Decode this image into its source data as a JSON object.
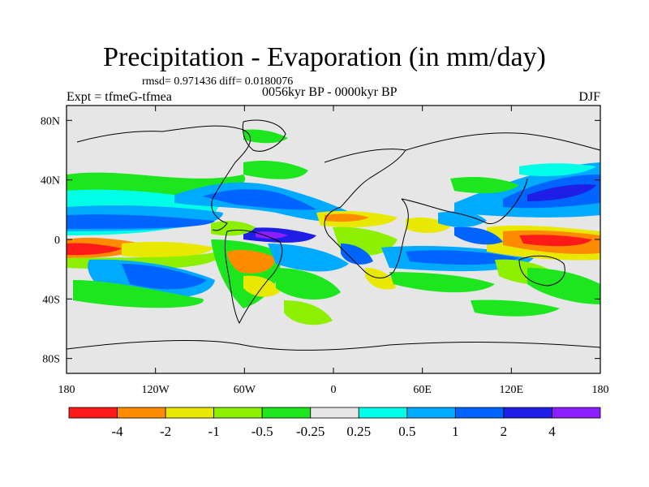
{
  "title": "Precipitation - Evaporation (in mm/day)",
  "stats": "rmsd= 0.971436 diff= 0.0180076",
  "experiment": "Expt = tfmeG-tfmea",
  "period": "0056kyr BP - 0000kyr BP",
  "season": "DJF",
  "lat_ticks": [
    {
      "label": "80N",
      "value": 80
    },
    {
      "label": "40N",
      "value": 40
    },
    {
      "label": "0",
      "value": 0
    },
    {
      "label": "40S",
      "value": -40
    },
    {
      "label": "80S",
      "value": -80
    }
  ],
  "lon_ticks": [
    {
      "label": "180",
      "value": -180
    },
    {
      "label": "120W",
      "value": -120
    },
    {
      "label": "60W",
      "value": -60
    },
    {
      "label": "0",
      "value": 0
    },
    {
      "label": "60E",
      "value": 60
    },
    {
      "label": "120E",
      "value": 120
    },
    {
      "label": "180",
      "value": 180
    }
  ],
  "colorbar": {
    "colors": [
      "#ff1a1a",
      "#ff8c00",
      "#e8e800",
      "#8cf000",
      "#1ee61e",
      "#e6e6e6",
      "#00ffe6",
      "#00aaff",
      "#0064ff",
      "#1e1ee6",
      "#8c1eff"
    ],
    "labels": [
      "-4",
      "-2",
      "-1",
      "-0.5",
      "-0.25",
      "0.25",
      "0.5",
      "1",
      "2",
      "4"
    ]
  },
  "background_color": "#e6e6e6",
  "chart_data": {
    "type": "heatmap",
    "title": "Precipitation - Evaporation (in mm/day)",
    "units": "mm/day",
    "projection": "cylindrical equidistant",
    "lon_range": [
      -180,
      180
    ],
    "lat_range": [
      -90,
      90
    ],
    "levels": [
      -4,
      -2,
      -1,
      -0.5,
      -0.25,
      0.25,
      0.5,
      1,
      2,
      4
    ],
    "features": [
      {
        "name": "itcz-east-pacific",
        "lon": [
          -175,
          -120
        ],
        "lat": [
          0,
          12
        ],
        "value": 2
      },
      {
        "name": "itcz-central-atlantic",
        "lon": [
          -50,
          -20
        ],
        "lat": [
          -2,
          8
        ],
        "value": 4
      },
      {
        "name": "indian-ocean-band",
        "lon": [
          45,
          100
        ],
        "lat": [
          -18,
          -6
        ],
        "value": 2
      },
      {
        "name": "west-pacific-warm-pool",
        "lon": [
          110,
          170
        ],
        "lat": [
          -10,
          10
        ],
        "value": -4
      },
      {
        "name": "north-pacific-storm-track",
        "lon": [
          120,
          180
        ],
        "lat": [
          20,
          45
        ],
        "value": 2
      },
      {
        "name": "north-atlantic-storm-track",
        "lon": [
          -90,
          -40
        ],
        "lat": [
          15,
          45
        ],
        "value": 1
      },
      {
        "name": "south-pacific-dry",
        "lon": [
          -180,
          -150
        ],
        "lat": [
          -12,
          -3
        ],
        "value": -2
      },
      {
        "name": "amazon-dry",
        "lon": [
          -70,
          -45
        ],
        "lat": [
          -25,
          -5
        ],
        "value": -2
      },
      {
        "name": "africa-sahel-dry",
        "lon": [
          -5,
          40
        ],
        "lat": [
          3,
          14
        ],
        "value": -1
      }
    ]
  }
}
